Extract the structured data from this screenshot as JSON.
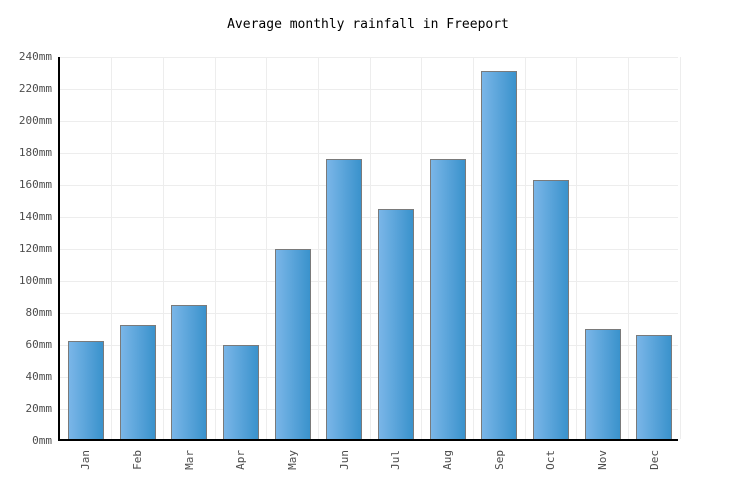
{
  "chart_data": {
    "type": "bar",
    "title": "Average monthly rainfall in Freeport",
    "categories": [
      "Jan",
      "Feb",
      "Mar",
      "Apr",
      "May",
      "Jun",
      "Jul",
      "Aug",
      "Sep",
      "Oct",
      "Nov",
      "Dec"
    ],
    "values": [
      61,
      71,
      84,
      59,
      119,
      175,
      144,
      175,
      230,
      162,
      69,
      65
    ],
    "unit": "mm",
    "xlabel": "",
    "ylabel": "",
    "ylim": [
      0,
      240
    ],
    "ytick_values": [
      0,
      20,
      40,
      60,
      80,
      100,
      120,
      140,
      160,
      180,
      200,
      220,
      240
    ],
    "ytick_labels": [
      "0mm",
      "20mm",
      "40mm",
      "60mm",
      "80mm",
      "100mm",
      "120mm",
      "140mm",
      "160mm",
      "180mm",
      "200mm",
      "220mm",
      "240mm"
    ],
    "grid": true,
    "legend": false
  },
  "colors": {
    "background": "#ffffff",
    "bar_gradient_left": "#7ab6e8",
    "bar_gradient_right": "#3a92cc",
    "bar_border": "#7a7a7a",
    "gridline": "#ededed",
    "axis": "#000000",
    "tick_text": "#4d4d4d",
    "title_text": "#000000"
  }
}
